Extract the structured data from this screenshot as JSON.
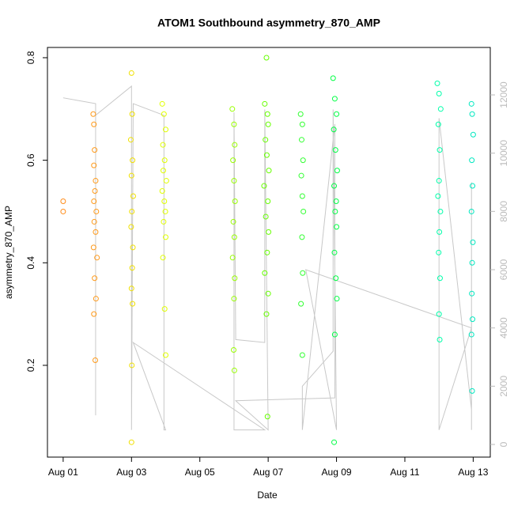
{
  "chart_data": {
    "type": "scatter",
    "title": "ATOM1 Southbound asymmetry_870_AMP",
    "x_label": "Date",
    "y_label": "asymmetry_870_AMP",
    "xlim": [
      -0.46,
      12.5
    ],
    "ylim": [
      0.021,
      0.82
    ],
    "y2lim": [
      -434,
      13629
    ],
    "xticks": [
      {
        "value": 0,
        "label": "Aug 01"
      },
      {
        "value": 2,
        "label": "Aug 03"
      },
      {
        "value": 4,
        "label": "Aug 05"
      },
      {
        "value": 6,
        "label": "Aug 07"
      },
      {
        "value": 8,
        "label": "Aug 09"
      },
      {
        "value": 10,
        "label": "Aug 11"
      },
      {
        "value": 12,
        "label": "Aug 13"
      }
    ],
    "yticks": [
      0.2,
      0.4,
      0.6,
      0.8
    ],
    "y2ticks": [
      0,
      2000,
      4000,
      6000,
      8000,
      10000,
      12000
    ],
    "series": [
      {
        "color": "#ff8c1a",
        "x": [
          0,
          0
        ],
        "values": [
          0.52,
          0.5
        ]
      },
      {
        "color": "#ff9a1a",
        "x": [
          0.88,
          0.9,
          0.92,
          0.9,
          0.95,
          0.93,
          0.9,
          0.97,
          0.91,
          0.95,
          0.89,
          0.99,
          0.92,
          0.96,
          0.9,
          0.94
        ],
        "values": [
          0.69,
          0.67,
          0.62,
          0.59,
          0.56,
          0.54,
          0.52,
          0.5,
          0.48,
          0.46,
          0.43,
          0.41,
          0.37,
          0.33,
          0.3,
          0.21
        ]
      },
      {
        "color": "#f0e000",
        "x": [
          2.0,
          2.02,
          1.98,
          2.03,
          2.0,
          2.05,
          2.01,
          1.99,
          2.04,
          2.02,
          2.0,
          2.03,
          2.01,
          2.0
        ],
        "values": [
          0.77,
          0.69,
          0.64,
          0.6,
          0.57,
          0.53,
          0.5,
          0.47,
          0.43,
          0.39,
          0.35,
          0.32,
          0.2,
          0.05
        ]
      },
      {
        "color": "#e0ff00",
        "x": [
          2.9,
          2.95,
          3.0,
          2.92,
          2.97,
          2.93,
          3.02,
          2.9,
          2.96,
          2.99,
          2.94,
          3.0,
          2.92,
          2.97,
          3.0
        ],
        "values": [
          0.71,
          0.69,
          0.66,
          0.63,
          0.6,
          0.58,
          0.56,
          0.54,
          0.52,
          0.5,
          0.48,
          0.45,
          0.41,
          0.31,
          0.22
        ]
      },
      {
        "color": "#99ff00",
        "x": [
          4.95,
          5.0,
          5.02,
          4.97,
          5.0,
          5.03,
          4.98,
          5.01,
          4.96,
          5.02,
          5.0,
          4.99,
          5.01
        ],
        "values": [
          0.7,
          0.67,
          0.63,
          0.6,
          0.56,
          0.52,
          0.48,
          0.45,
          0.41,
          0.37,
          0.33,
          0.23,
          0.19
        ]
      },
      {
        "color": "#66ff00",
        "x": [
          5.95,
          5.9,
          5.98,
          6.0,
          5.92,
          5.96,
          6.02,
          5.88,
          5.99,
          5.93,
          6.01,
          5.97,
          5.9,
          6.0,
          5.95,
          5.98
        ],
        "values": [
          0.8,
          0.71,
          0.69,
          0.67,
          0.64,
          0.61,
          0.58,
          0.55,
          0.52,
          0.49,
          0.46,
          0.42,
          0.38,
          0.34,
          0.3,
          0.1
        ]
      },
      {
        "color": "#33ff33",
        "x": [
          6.95,
          7.0,
          6.98,
          7.02,
          6.97,
          7.0,
          7.03,
          6.99,
          7.01,
          6.96,
          7.0
        ],
        "values": [
          0.69,
          0.67,
          0.64,
          0.6,
          0.57,
          0.53,
          0.5,
          0.45,
          0.38,
          0.32,
          0.22
        ]
      },
      {
        "color": "#00ff44",
        "x": [
          7.9,
          7.95,
          8.0,
          7.92,
          7.97,
          8.02,
          7.93,
          7.99,
          7.96,
          8.0,
          7.94,
          7.98,
          8.01,
          7.95,
          7.93
        ],
        "values": [
          0.76,
          0.72,
          0.69,
          0.66,
          0.62,
          0.58,
          0.55,
          0.52,
          0.5,
          0.47,
          0.42,
          0.37,
          0.33,
          0.26,
          0.05
        ]
      },
      {
        "color": "#00ffaa",
        "x": [
          10.95,
          11.0,
          11.05,
          10.98,
          11.02,
          11.0,
          10.97,
          11.04,
          11.01,
          10.99,
          11.03,
          11.0,
          11.02
        ],
        "values": [
          0.75,
          0.73,
          0.7,
          0.67,
          0.62,
          0.56,
          0.53,
          0.5,
          0.46,
          0.42,
          0.37,
          0.3,
          0.25
        ]
      },
      {
        "color": "#00e8c0",
        "x": [
          11.95,
          11.97,
          12.0,
          11.96,
          11.98,
          11.95,
          11.99,
          11.97,
          11.96,
          11.98,
          11.95,
          11.97
        ],
        "values": [
          0.71,
          0.69,
          0.65,
          0.6,
          0.55,
          0.5,
          0.44,
          0.4,
          0.34,
          0.29,
          0.26,
          0.15
        ]
      },
      {
        "color": "#c8c8c8",
        "axis": "y2",
        "x": [
          0,
          0.95,
          0.95,
          0.95,
          2.0,
          2.0,
          2.05,
          2.95,
          2.95,
          3.0,
          2.05,
          5.9,
          5.0,
          5.0,
          5.05,
          5.9,
          5.9,
          6.0,
          5.05,
          7.95,
          7.95,
          7.0,
          7.0,
          7.9,
          7.9,
          8.0,
          7.1,
          11.95,
          11.0,
          11.0,
          11.95,
          11.95,
          11.95
        ],
        "values": [
          11900,
          11700,
          1000,
          11300,
          12300,
          500,
          11700,
          11300,
          500,
          500,
          3500,
          500,
          500,
          11400,
          3600,
          3500,
          11500,
          500,
          1500,
          1600,
          11000,
          500,
          2000,
          3200,
          11500,
          500,
          6000,
          4000,
          500,
          11200,
          1200,
          9000,
          500
        ]
      }
    ]
  }
}
